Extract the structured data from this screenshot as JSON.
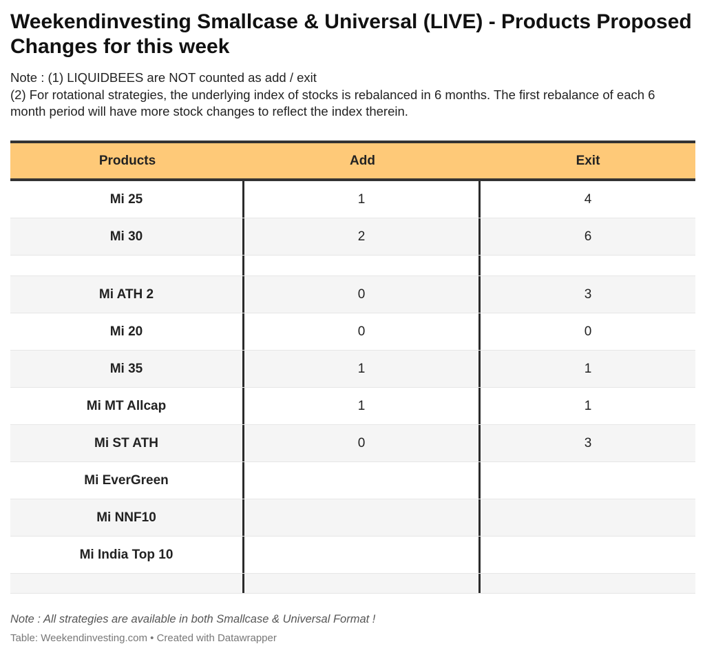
{
  "title": "Weekendinvesting Smallcase & Universal (LIVE) - Products Proposed Changes for this week",
  "notes": [
    "Note : (1) LIQUIDBEES are NOT counted as add / exit",
    "(2) For rotational strategies, the underlying index of stocks is rebalanced in 6 months. The first rebalance of each 6 month period will have more stock changes to reflect the index therein."
  ],
  "footer_note": "Note : All strategies are available in both Smallcase & Universal Format !",
  "footer_credit": "Table: Weekendinvesting.com • Created with Datawrapper",
  "colors": {
    "header_bg": "#fec978",
    "rule": "#333333",
    "stripe": "#f5f5f5"
  },
  "chart_data": {
    "type": "table",
    "columns": [
      "Products",
      "Add",
      "Exit"
    ],
    "rows": [
      {
        "product": "Mi 25",
        "add": "1",
        "exit": "4"
      },
      {
        "product": "Mi 30",
        "add": "2",
        "exit": "6"
      },
      {
        "product": "",
        "add": "",
        "exit": ""
      },
      {
        "product": "Mi ATH 2",
        "add": "0",
        "exit": "3"
      },
      {
        "product": "Mi 20",
        "add": "0",
        "exit": "0"
      },
      {
        "product": "Mi 35",
        "add": "1",
        "exit": "1"
      },
      {
        "product": "Mi MT Allcap",
        "add": "1",
        "exit": "1"
      },
      {
        "product": "Mi ST ATH",
        "add": "0",
        "exit": "3"
      },
      {
        "product": "Mi EverGreen",
        "add": "",
        "exit": ""
      },
      {
        "product": "Mi NNF10",
        "add": "",
        "exit": ""
      },
      {
        "product": "Mi India Top 10",
        "add": "",
        "exit": ""
      },
      {
        "product": "",
        "add": "",
        "exit": ""
      }
    ]
  }
}
